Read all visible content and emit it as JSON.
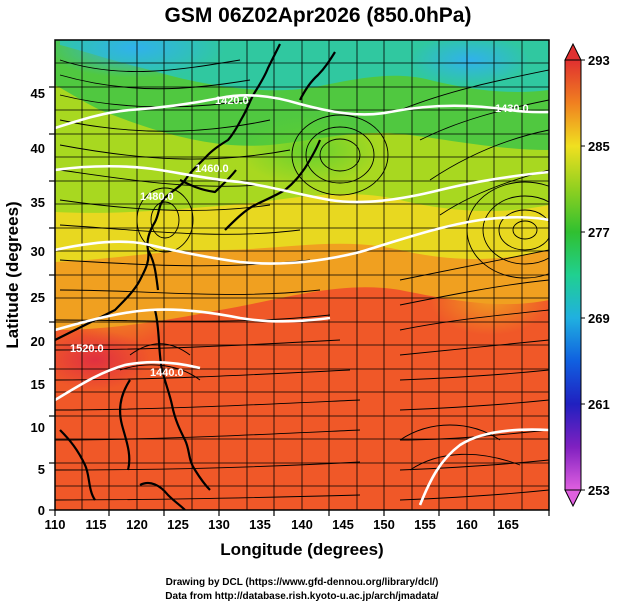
{
  "title": "GSM 06Z02Apr2026 (850.0hPa)",
  "xlabel": "Longitude (degrees)",
  "ylabel": "Latitude  (degrees)",
  "x_ticks": [
    "110",
    "115",
    "120",
    "125",
    "130",
    "135",
    "140",
    "145",
    "150",
    "155",
    "160",
    "165"
  ],
  "y_ticks": [
    "0",
    "5",
    "10",
    "15",
    "20",
    "25",
    "30",
    "35",
    "40",
    "45"
  ],
  "map_extent": {
    "lon_min": 110,
    "lon_max": 170,
    "lat_min": 0,
    "lat_max": 50
  },
  "colorbar": {
    "ticks": [
      "293",
      "285",
      "277",
      "269",
      "261",
      "253"
    ],
    "min": 253,
    "max": 293,
    "colors": [
      "#e060e0",
      "#3010c0",
      "#1060e0",
      "#20b0e0",
      "#20d090",
      "#30c030",
      "#90d020",
      "#e0e020",
      "#f0a020",
      "#f06020",
      "#e03030"
    ]
  },
  "contour_labels": [
    "1420.0",
    "1430.0",
    "1460.0",
    "1480.0",
    "1520.0",
    "1440.0"
  ],
  "credits": {
    "line1": "Drawing by DCL (https://www.gfd-dennou.org/library/dcl/)",
    "line2": "Data from http://database.rish.kyoto-u.ac.jp/arch/jmadata/"
  }
}
